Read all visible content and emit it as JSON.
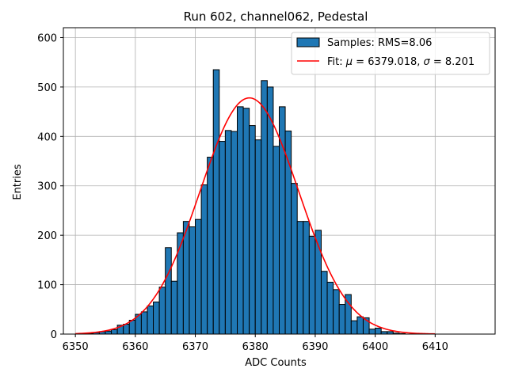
{
  "chart_data": {
    "type": "bar",
    "title": "Run 602, channel062, Pedestal",
    "xlabel": "ADC Counts",
    "ylabel": "Entries",
    "xlim": [
      6348,
      6420
    ],
    "ylim": [
      0,
      620
    ],
    "xticks": [
      6350,
      6360,
      6370,
      6380,
      6390,
      6400,
      6410
    ],
    "yticks": [
      0,
      100,
      200,
      300,
      400,
      500,
      600
    ],
    "grid": true,
    "legend_position": "top-right",
    "histogram": {
      "name": "Samples: RMS=8.06",
      "color": "#1f77b4",
      "bin_start": 6350,
      "bin_width": 1,
      "counts": [
        0,
        0,
        1,
        3,
        5,
        6,
        9,
        18,
        20,
        28,
        40,
        45,
        57,
        65,
        95,
        175,
        107,
        205,
        228,
        217,
        232,
        302,
        358,
        535,
        390,
        412,
        410,
        460,
        457,
        422,
        393,
        513,
        500,
        380,
        460,
        411,
        305,
        228,
        228,
        198,
        210,
        127,
        105,
        90,
        60,
        80,
        27,
        35,
        33,
        10,
        12,
        5,
        5,
        2,
        1,
        0
      ]
    },
    "fit": {
      "name": "Fit: μ = 6379.018, σ = 8.201",
      "label_parts": [
        "Fit: ",
        "μ",
        " = 6379.018, ",
        "σ",
        " = 8.201"
      ],
      "color": "#ff0000",
      "mu": 6379.018,
      "sigma": 8.201,
      "amplitude": 478,
      "x_range": [
        6350,
        6410
      ]
    }
  }
}
